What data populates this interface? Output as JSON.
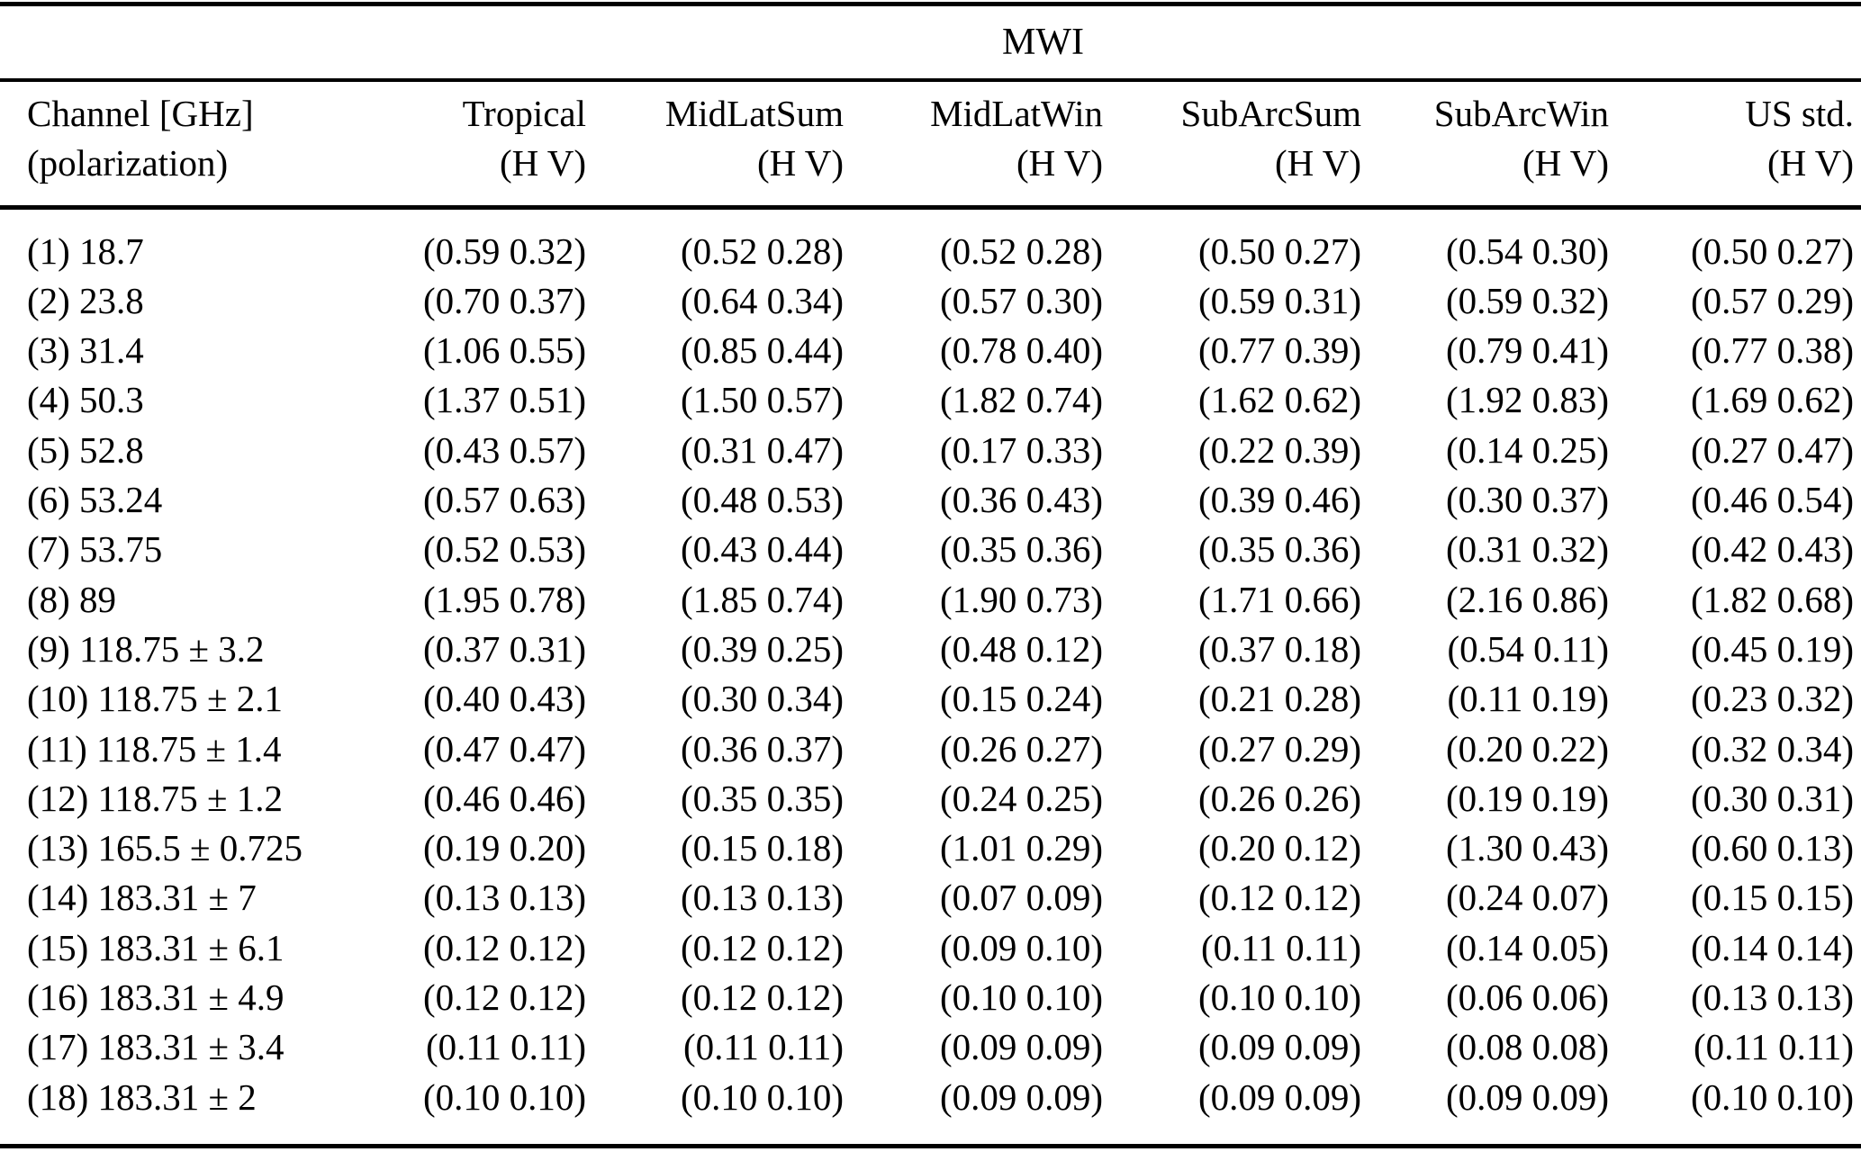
{
  "table": {
    "title": "MWI",
    "header": {
      "channel_line1": "Channel [GHz]",
      "channel_line2": "(polarization)",
      "columns": [
        "Tropical",
        "MidLatSum",
        "MidLatWin",
        "SubArcSum",
        "SubArcWin",
        "US std."
      ],
      "subheader": "(H V)"
    },
    "rows": [
      {
        "channel": "(1) 18.7",
        "values": [
          "(0.59 0.32)",
          "(0.52 0.28)",
          "(0.52 0.28)",
          "(0.50 0.27)",
          "(0.54 0.30)",
          "(0.50 0.27)"
        ]
      },
      {
        "channel": "(2) 23.8",
        "values": [
          "(0.70 0.37)",
          "(0.64 0.34)",
          "(0.57 0.30)",
          "(0.59 0.31)",
          "(0.59 0.32)",
          "(0.57 0.29)"
        ]
      },
      {
        "channel": "(3) 31.4",
        "values": [
          "(1.06 0.55)",
          "(0.85 0.44)",
          "(0.78 0.40)",
          "(0.77 0.39)",
          "(0.79 0.41)",
          "(0.77 0.38)"
        ]
      },
      {
        "channel": "(4) 50.3",
        "values": [
          "(1.37 0.51)",
          "(1.50 0.57)",
          "(1.82 0.74)",
          "(1.62 0.62)",
          "(1.92 0.83)",
          "(1.69 0.62)"
        ]
      },
      {
        "channel": "(5) 52.8",
        "values": [
          "(0.43 0.57)",
          "(0.31 0.47)",
          "(0.17 0.33)",
          "(0.22 0.39)",
          "(0.14 0.25)",
          "(0.27 0.47)"
        ]
      },
      {
        "channel": "(6) 53.24",
        "values": [
          "(0.57 0.63)",
          "(0.48 0.53)",
          "(0.36 0.43)",
          "(0.39 0.46)",
          "(0.30 0.37)",
          "(0.46 0.54)"
        ]
      },
      {
        "channel": "(7) 53.75",
        "values": [
          "(0.52 0.53)",
          "(0.43 0.44)",
          "(0.35 0.36)",
          "(0.35 0.36)",
          "(0.31 0.32)",
          "(0.42 0.43)"
        ]
      },
      {
        "channel": "(8) 89",
        "values": [
          "(1.95 0.78)",
          "(1.85 0.74)",
          "(1.90 0.73)",
          "(1.71 0.66)",
          "(2.16 0.86)",
          "(1.82 0.68)"
        ]
      },
      {
        "channel": "(9) 118.75 ± 3.2",
        "values": [
          "(0.37 0.31)",
          "(0.39 0.25)",
          "(0.48 0.12)",
          "(0.37 0.18)",
          "(0.54 0.11)",
          "(0.45 0.19)"
        ]
      },
      {
        "channel": "(10) 118.75 ± 2.1",
        "values": [
          "(0.40 0.43)",
          "(0.30 0.34)",
          "(0.15 0.24)",
          "(0.21 0.28)",
          "(0.11 0.19)",
          "(0.23 0.32)"
        ]
      },
      {
        "channel": "(11) 118.75 ± 1.4",
        "values": [
          "(0.47 0.47)",
          "(0.36 0.37)",
          "(0.26 0.27)",
          "(0.27 0.29)",
          "(0.20 0.22)",
          "(0.32 0.34)"
        ]
      },
      {
        "channel": "(12) 118.75 ± 1.2",
        "values": [
          "(0.46 0.46)",
          "(0.35 0.35)",
          "(0.24 0.25)",
          "(0.26 0.26)",
          "(0.19 0.19)",
          "(0.30 0.31)"
        ]
      },
      {
        "channel": "(13) 165.5 ± 0.725",
        "values": [
          "(0.19 0.20)",
          "(0.15 0.18)",
          "(1.01 0.29)",
          "(0.20 0.12)",
          "(1.30 0.43)",
          "(0.60 0.13)"
        ]
      },
      {
        "channel": "(14) 183.31 ± 7",
        "values": [
          "(0.13 0.13)",
          "(0.13 0.13)",
          "(0.07 0.09)",
          "(0.12 0.12)",
          "(0.24 0.07)",
          "(0.15 0.15)"
        ]
      },
      {
        "channel": "(15) 183.31 ± 6.1",
        "values": [
          "(0.12 0.12)",
          "(0.12 0.12)",
          "(0.09 0.10)",
          "(0.11 0.11)",
          "(0.14 0.05)",
          "(0.14 0.14)"
        ]
      },
      {
        "channel": "(16) 183.31 ± 4.9",
        "values": [
          "(0.12 0.12)",
          "(0.12 0.12)",
          "(0.10 0.10)",
          "(0.10 0.10)",
          "(0.06 0.06)",
          "(0.13 0.13)"
        ]
      },
      {
        "channel": "(17) 183.31 ± 3.4",
        "values": [
          "(0.11 0.11)",
          "(0.11 0.11)",
          "(0.09 0.09)",
          "(0.09 0.09)",
          "(0.08 0.08)",
          "(0.11 0.11)"
        ]
      },
      {
        "channel": "(18) 183.31 ± 2",
        "values": [
          "(0.10 0.10)",
          "(0.10 0.10)",
          "(0.09 0.09)",
          "(0.09 0.09)",
          "(0.09 0.09)",
          "(0.10 0.10)"
        ]
      }
    ]
  }
}
